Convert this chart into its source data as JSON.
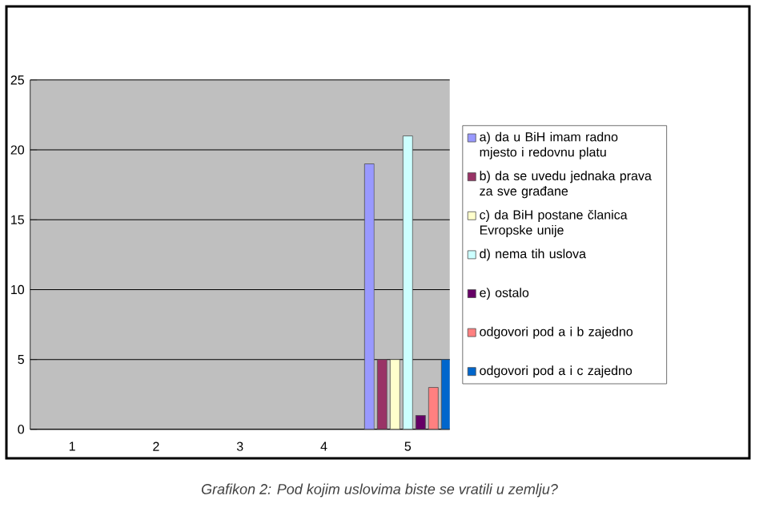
{
  "chart_data": {
    "type": "bar",
    "title": "*Grafikon 2: Pod kojim uslovima biste se vratili u zemlju?*",
    "categories": [
      "1",
      "2",
      "3",
      "4",
      "5"
    ],
    "series": [
      {
        "name": "a) da u BiH imam radno mjesto i redovnu platu",
        "color": "#9999ff",
        "values": [
          null,
          null,
          null,
          null,
          19
        ]
      },
      {
        "name": "b) da se uvedu jednaka prava za sve građane",
        "color": "#993366",
        "values": [
          null,
          null,
          null,
          null,
          5
        ]
      },
      {
        "name": "c) da BiH postane članica Evropske unije",
        "color": "#ffffcc",
        "values": [
          null,
          null,
          null,
          null,
          5
        ]
      },
      {
        "name": "d) nema tih uslova",
        "color": "#ccffff",
        "values": [
          null,
          null,
          null,
          null,
          21
        ]
      },
      {
        "name": "e) ostalo",
        "color": "#660066",
        "values": [
          null,
          null,
          null,
          null,
          1
        ]
      },
      {
        "name": "odgovori pod a i b zajedno",
        "color": "#ff8080",
        "values": [
          null,
          null,
          null,
          null,
          3
        ]
      },
      {
        "name": "odgovori pod a i c zajedno",
        "color": "#0066cc",
        "values": [
          null,
          null,
          null,
          null,
          5
        ]
      }
    ],
    "ylim": [
      0,
      25
    ],
    "yticks": [
      0,
      5,
      10,
      15,
      20,
      25
    ],
    "grid": "y",
    "legend": "right"
  }
}
